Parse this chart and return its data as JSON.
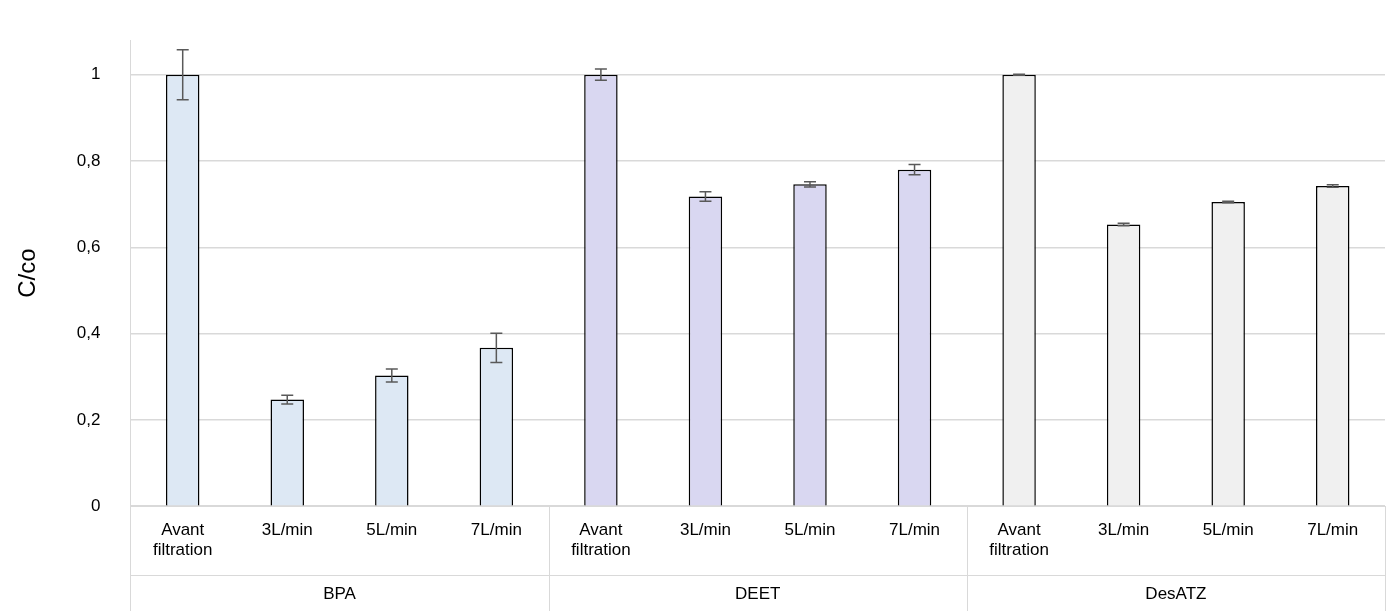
{
  "chart_data": {
    "type": "bar",
    "ylabel": "C/co",
    "categories": [
      "Avant filtration",
      "3L/min",
      "5L/min",
      "7L/min",
      "Avant filtration",
      "3L/min",
      "5L/min",
      "7L/min",
      "Avant filtration",
      "3L/min",
      "5L/min",
      "7L/min"
    ],
    "values": [
      1.0,
      0.247,
      0.303,
      0.367,
      1.0,
      0.718,
      0.746,
      0.78,
      1.0,
      0.653,
      0.705,
      0.742
    ],
    "errors": [
      0.058,
      0.01,
      0.015,
      0.034,
      0.013,
      0.011,
      0.006,
      0.012,
      0.001,
      0.003,
      0.002,
      0.003
    ],
    "colors": [
      "#dde8f4",
      "#dde8f4",
      "#dde8f4",
      "#dde8f4",
      "#d9d7f1",
      "#d9d7f1",
      "#d9d7f1",
      "#d9d7f1",
      "#f0f0f0",
      "#f0f0f0",
      "#f0f0f0",
      "#f0f0f0"
    ],
    "annotations": [
      "BPA",
      "DEET",
      "DesATZ"
    ],
    "ylim": [
      0,
      1.08
    ],
    "yticks": [
      0,
      {
        "value": 0.2,
        "label": "0,2"
      },
      {
        "value": 0.4,
        "label": "0,4"
      },
      {
        "value": 0.6,
        "label": "0,6"
      },
      {
        "value": 0.8,
        "label": "0,8"
      },
      1
    ],
    "grid": "y",
    "legend": false
  }
}
